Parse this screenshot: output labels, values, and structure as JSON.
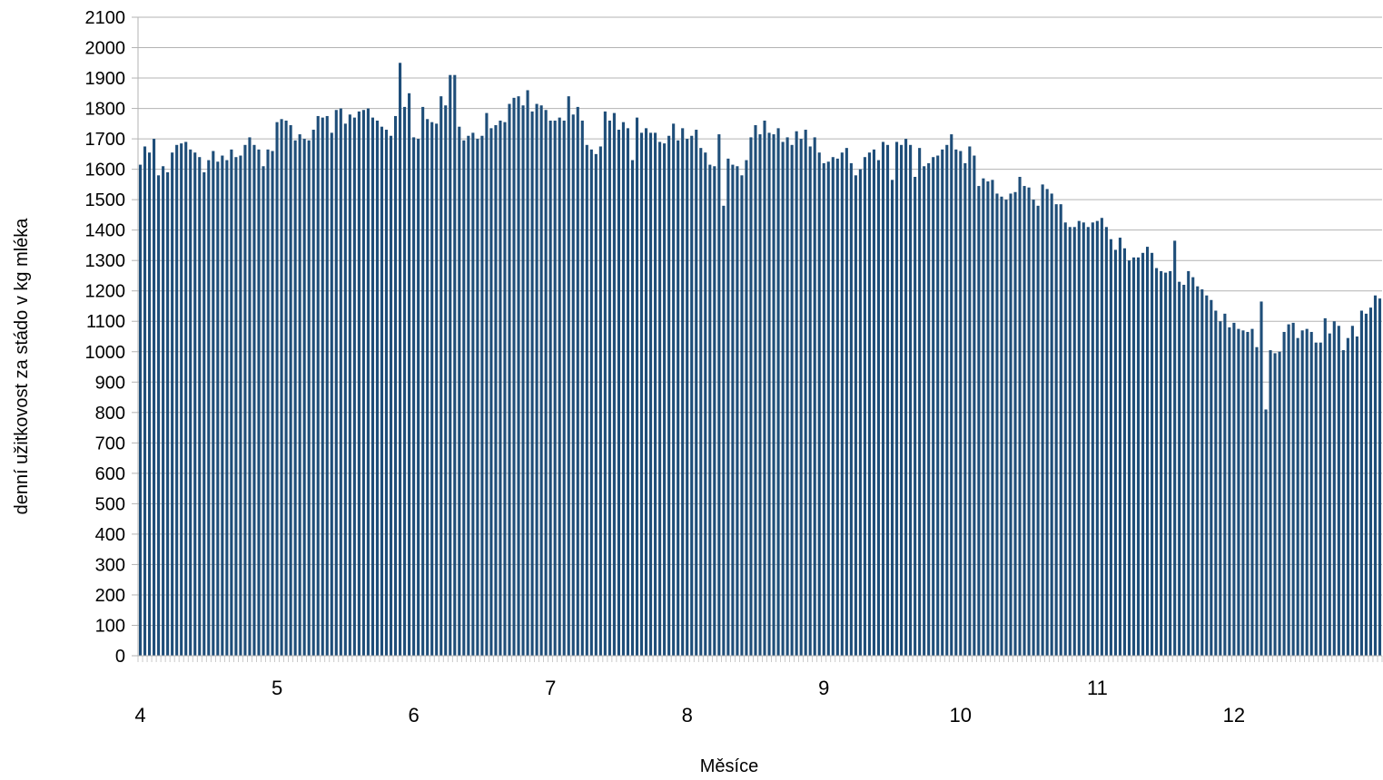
{
  "chart_data": {
    "type": "bar",
    "xlabel": "Měsíce",
    "ylabel": "denní užitkovost za stádo v kg mléka",
    "ylim": [
      0,
      2100
    ],
    "yticks": [
      0,
      100,
      200,
      300,
      400,
      500,
      600,
      700,
      800,
      900,
      1000,
      1100,
      1200,
      1300,
      1400,
      1500,
      1600,
      1700,
      1800,
      1900,
      2000,
      2100
    ],
    "xticks": [
      {
        "label": "4",
        "day": 0,
        "row": "lower"
      },
      {
        "label": "5",
        "day": 30,
        "row": "upper"
      },
      {
        "label": "6",
        "day": 60,
        "row": "lower"
      },
      {
        "label": "7",
        "day": 90,
        "row": "upper"
      },
      {
        "label": "8",
        "day": 120,
        "row": "lower"
      },
      {
        "label": "9",
        "day": 150,
        "row": "upper"
      },
      {
        "label": "10",
        "day": 180,
        "row": "lower"
      },
      {
        "label": "11",
        "day": 210,
        "row": "upper"
      },
      {
        "label": "12",
        "day": 240,
        "row": "lower"
      }
    ],
    "grid": true,
    "bar_color": "#1f4e79",
    "values": [
      1615,
      1675,
      1655,
      1700,
      1580,
      1610,
      1590,
      1655,
      1680,
      1685,
      1690,
      1665,
      1655,
      1640,
      1590,
      1630,
      1660,
      1625,
      1645,
      1630,
      1665,
      1640,
      1645,
      1680,
      1705,
      1680,
      1665,
      1610,
      1665,
      1660,
      1755,
      1765,
      1760,
      1745,
      1695,
      1715,
      1700,
      1695,
      1730,
      1775,
      1770,
      1775,
      1720,
      1795,
      1800,
      1750,
      1780,
      1770,
      1790,
      1795,
      1800,
      1770,
      1760,
      1740,
      1730,
      1710,
      1775,
      1950,
      1805,
      1850,
      1705,
      1700,
      1805,
      1765,
      1755,
      1750,
      1840,
      1810,
      1910,
      1910,
      1740,
      1695,
      1710,
      1720,
      1700,
      1710,
      1785,
      1735,
      1745,
      1760,
      1755,
      1815,
      1835,
      1840,
      1810,
      1860,
      1790,
      1815,
      1810,
      1795,
      1760,
      1760,
      1770,
      1760,
      1840,
      1780,
      1805,
      1760,
      1680,
      1665,
      1650,
      1675,
      1790,
      1760,
      1785,
      1730,
      1755,
      1735,
      1630,
      1770,
      1720,
      1735,
      1720,
      1720,
      1690,
      1685,
      1710,
      1750,
      1695,
      1735,
      1700,
      1710,
      1730,
      1670,
      1655,
      1615,
      1610,
      1715,
      1480,
      1635,
      1615,
      1610,
      1580,
      1630,
      1705,
      1745,
      1715,
      1760,
      1720,
      1715,
      1735,
      1690,
      1705,
      1680,
      1725,
      1700,
      1730,
      1675,
      1705,
      1655,
      1620,
      1625,
      1640,
      1635,
      1655,
      1670,
      1620,
      1580,
      1600,
      1640,
      1655,
      1665,
      1630,
      1690,
      1680,
      1565,
      1690,
      1680,
      1700,
      1680,
      1575,
      1670,
      1610,
      1620,
      1640,
      1645,
      1665,
      1680,
      1715,
      1665,
      1660,
      1620,
      1675,
      1645,
      1545,
      1570,
      1560,
      1565,
      1520,
      1510,
      1500,
      1520,
      1525,
      1575,
      1545,
      1540,
      1500,
      1480,
      1550,
      1535,
      1520,
      1485,
      1485,
      1425,
      1410,
      1410,
      1430,
      1425,
      1410,
      1425,
      1430,
      1440,
      1410,
      1370,
      1335,
      1375,
      1340,
      1300,
      1310,
      1310,
      1325,
      1345,
      1325,
      1275,
      1265,
      1260,
      1265,
      1365,
      1230,
      1220,
      1265,
      1245,
      1215,
      1205,
      1185,
      1170,
      1135,
      1100,
      1125,
      1080,
      1095,
      1075,
      1070,
      1065,
      1075,
      1015,
      1165,
      810,
      1005,
      995,
      1000,
      1065,
      1090,
      1095,
      1045,
      1070,
      1075,
      1065,
      1030,
      1030,
      1110,
      1060,
      1100,
      1085,
      1005,
      1045,
      1085,
      1050,
      1135,
      1125,
      1145,
      1185,
      1175
    ]
  }
}
